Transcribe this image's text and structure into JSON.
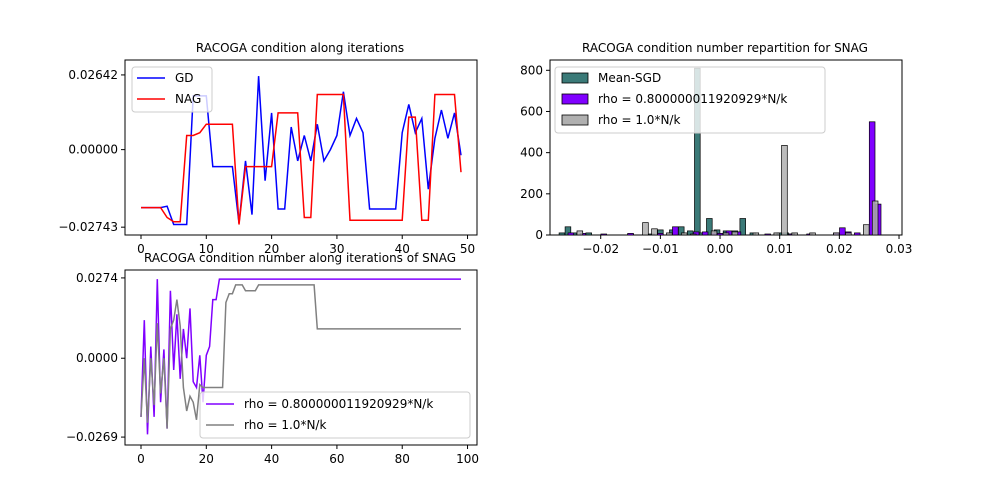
{
  "chart_data": [
    {
      "type": "line",
      "title": "RACOGA condition along iterations",
      "xlim": [
        -2.45,
        51.45
      ],
      "ylim": [
        -0.0302,
        0.0317
      ],
      "xticks": [
        0,
        10,
        20,
        30,
        40,
        50
      ],
      "yticks": [
        -0.02743,
        0.0,
        0.02642
      ],
      "ytick_labels": [
        "−0.02743",
        "0.00000",
        "0.02642"
      ],
      "legend": "upper-left",
      "grid": false,
      "series": [
        {
          "name": "GD",
          "color": "#0000ff",
          "x": [
            0,
            1,
            2,
            3,
            4,
            5,
            6,
            7,
            8,
            9,
            10,
            11,
            12,
            13,
            14,
            15,
            16,
            17,
            18,
            19,
            20,
            21,
            22,
            23,
            24,
            25,
            26,
            27,
            28,
            29,
            30,
            31,
            32,
            33,
            34,
            35,
            36,
            37,
            38,
            39,
            40,
            41,
            42,
            43,
            44,
            45,
            46,
            47,
            48,
            49
          ],
          "y": [
            -0.0205,
            -0.0205,
            -0.0205,
            -0.0205,
            -0.02,
            -0.0265,
            -0.0265,
            -0.0265,
            0.019,
            0.019,
            0.019,
            -0.006,
            -0.006,
            -0.006,
            -0.006,
            -0.026,
            -0.004,
            -0.023,
            0.026,
            -0.011,
            0.013,
            -0.021,
            -0.021,
            0.008,
            -0.004,
            0.005,
            -0.004,
            0.009,
            -0.004,
            0.0,
            0.005,
            0.0205,
            0.005,
            0.011,
            0.006,
            -0.021,
            -0.021,
            -0.021,
            -0.021,
            -0.021,
            0.006,
            0.016,
            0.006,
            0.011,
            -0.014,
            0.004,
            0.014,
            0.004,
            0.013,
            -0.002
          ]
        },
        {
          "name": "NAG",
          "color": "#ff0000",
          "x": [
            0,
            1,
            2,
            3,
            4,
            5,
            6,
            7,
            8,
            9,
            10,
            11,
            12,
            13,
            14,
            15,
            16,
            17,
            18,
            19,
            20,
            21,
            22,
            23,
            24,
            25,
            26,
            27,
            28,
            29,
            30,
            31,
            32,
            33,
            34,
            35,
            36,
            37,
            38,
            39,
            40,
            41,
            42,
            43,
            44,
            45,
            46,
            47,
            48,
            49
          ],
          "y": [
            -0.0205,
            -0.0205,
            -0.0205,
            -0.0205,
            -0.024,
            -0.0255,
            -0.0255,
            0.005,
            0.005,
            0.006,
            0.009,
            0.009,
            0.009,
            0.009,
            0.009,
            -0.0265,
            -0.006,
            -0.006,
            -0.006,
            -0.006,
            -0.006,
            0.013,
            0.013,
            0.013,
            0.013,
            -0.024,
            -0.024,
            0.0195,
            0.0195,
            0.0195,
            0.0195,
            0.0195,
            -0.025,
            -0.025,
            -0.025,
            -0.025,
            -0.025,
            -0.025,
            -0.025,
            -0.025,
            -0.025,
            0.0115,
            0.0115,
            -0.025,
            -0.025,
            0.0195,
            0.0195,
            0.0195,
            0.0195,
            -0.008
          ]
        }
      ]
    },
    {
      "type": "bar",
      "title": "RACOGA condition number repartition for SNAG",
      "xlim": [
        -0.0285,
        0.0305
      ],
      "ylim": [
        0,
        850
      ],
      "xticks": [
        -0.02,
        -0.01,
        0.0,
        0.01,
        0.02,
        0.03
      ],
      "xtick_labels": [
        "−0.02",
        "−0.01",
        "0.00",
        "0.01",
        "0.02",
        "0.03"
      ],
      "yticks": [
        0,
        200,
        400,
        600,
        800
      ],
      "legend": "upper-left",
      "grid": false,
      "bin_width": 0.00095,
      "series": [
        {
          "name": "Mean-SGD",
          "color": "#3b7a78",
          "bins": [
            [
              -0.0265,
              10
            ],
            [
              -0.0255,
              40
            ],
            [
              -0.0245,
              10
            ],
            [
              -0.022,
              10
            ],
            [
              -0.015,
              5
            ],
            [
              -0.0115,
              5
            ],
            [
              -0.01,
              25
            ],
            [
              -0.008,
              25
            ],
            [
              -0.0065,
              40
            ],
            [
              -0.005,
              20
            ],
            [
              -0.0038,
              810
            ],
            [
              -0.003,
              10
            ],
            [
              -0.0018,
              80
            ],
            [
              -0.0005,
              25
            ],
            [
              0.001,
              20
            ],
            [
              0.0025,
              20
            ],
            [
              0.0038,
              80
            ],
            [
              0.0055,
              10
            ],
            [
              0.01,
              10
            ],
            [
              0.011,
              10
            ],
            [
              0.012,
              5
            ],
            [
              0.0195,
              5
            ],
            [
              0.0255,
              5
            ]
          ]
        },
        {
          "name": "rho = 0.800000011920929*N/k",
          "color": "#8000ff",
          "bins": [
            [
              -0.025,
              10
            ],
            [
              -0.023,
              8
            ],
            [
              -0.0195,
              5
            ],
            [
              -0.015,
              8
            ],
            [
              -0.01,
              8
            ],
            [
              -0.0075,
              40
            ],
            [
              -0.004,
              15
            ],
            [
              -0.0025,
              15
            ],
            [
              -0.001,
              10
            ],
            [
              0.0,
              8
            ],
            [
              0.0015,
              20
            ],
            [
              0.003,
              15
            ],
            [
              0.008,
              5
            ],
            [
              0.012,
              5
            ],
            [
              0.015,
              5
            ],
            [
              0.0195,
              10
            ],
            [
              0.0205,
              35
            ],
            [
              0.0215,
              15
            ],
            [
              0.023,
              10
            ],
            [
              0.0255,
              550
            ],
            [
              0.0265,
              150
            ]
          ]
        },
        {
          "name": "rho = 1.0*N/k",
          "color": "#b0b0b0",
          "bins": [
            [
              -0.0235,
              20
            ],
            [
              -0.0125,
              60
            ],
            [
              -0.011,
              30
            ],
            [
              -0.0085,
              10
            ],
            [
              -0.006,
              10
            ],
            [
              -0.0045,
              5
            ],
            [
              -0.001,
              20
            ],
            [
              0.001,
              10
            ],
            [
              0.0025,
              15
            ],
            [
              0.006,
              10
            ],
            [
              0.0095,
              10
            ],
            [
              0.0108,
              435
            ],
            [
              0.0125,
              10
            ],
            [
              0.0155,
              10
            ],
            [
              0.0195,
              10
            ],
            [
              0.0215,
              10
            ],
            [
              0.0245,
              50
            ],
            [
              0.026,
              165
            ]
          ]
        }
      ]
    },
    {
      "type": "line",
      "title": "RACOGA condition number along iterations of SNAG",
      "xlim": [
        -4.9,
        102.9
      ],
      "ylim": [
        -0.0296,
        0.0301
      ],
      "xticks": [
        0,
        20,
        40,
        60,
        80,
        100
      ],
      "yticks": [
        -0.0269,
        0.0,
        0.0274
      ],
      "ytick_labels": [
        "−0.0269",
        "0.0000",
        "0.0274"
      ],
      "legend": "lower-right",
      "grid": false,
      "series": [
        {
          "name": "rho = 0.800000011920929*N/k",
          "color": "#8000ff",
          "x": [
            0,
            1,
            2,
            3,
            4,
            5,
            6,
            7,
            8,
            9,
            10,
            11,
            12,
            13,
            14,
            15,
            16,
            17,
            18,
            19,
            20,
            21,
            22,
            23,
            24,
            25,
            26,
            27,
            28,
            29,
            30,
            35,
            40,
            50,
            60,
            80,
            98
          ],
          "y": [
            -0.02,
            0.013,
            -0.026,
            0.004,
            -0.02,
            0.027,
            -0.015,
            0.003,
            -0.024,
            0.023,
            -0.004,
            0.015,
            -0.007,
            0.01,
            0.0,
            0.017,
            -0.008,
            -0.01,
            0.001,
            -0.015,
            0.001,
            0.004,
            0.02,
            0.02,
            0.027,
            0.027,
            0.027,
            0.027,
            0.027,
            0.027,
            0.027,
            0.027,
            0.027,
            0.027,
            0.027,
            0.027,
            0.027
          ]
        },
        {
          "name": "rho = 1.0*N/k",
          "color": "#808080",
          "x": [
            0,
            1,
            2,
            3,
            4,
            5,
            6,
            7,
            8,
            9,
            10,
            11,
            12,
            13,
            14,
            15,
            16,
            17,
            18,
            19,
            20,
            21,
            22,
            23,
            24,
            25,
            26,
            27,
            28,
            29,
            30,
            31,
            32,
            33,
            34,
            35,
            36,
            37,
            38,
            39,
            40,
            45,
            50,
            53,
            54,
            60,
            80,
            98
          ],
          "y": [
            -0.02,
            0.0,
            -0.022,
            0.0,
            -0.016,
            0.012,
            -0.012,
            0.0,
            -0.024,
            0.01,
            0.013,
            0.02,
            0.011,
            -0.01,
            -0.018,
            -0.013,
            -0.015,
            -0.021,
            -0.009,
            -0.01,
            -0.01,
            -0.01,
            -0.01,
            -0.01,
            -0.01,
            -0.01,
            0.019,
            0.022,
            0.022,
            0.025,
            0.025,
            0.025,
            0.023,
            0.023,
            0.023,
            0.023,
            0.025,
            0.025,
            0.025,
            0.025,
            0.025,
            0.025,
            0.025,
            0.025,
            0.01,
            0.01,
            0.01,
            0.01
          ]
        }
      ]
    }
  ]
}
